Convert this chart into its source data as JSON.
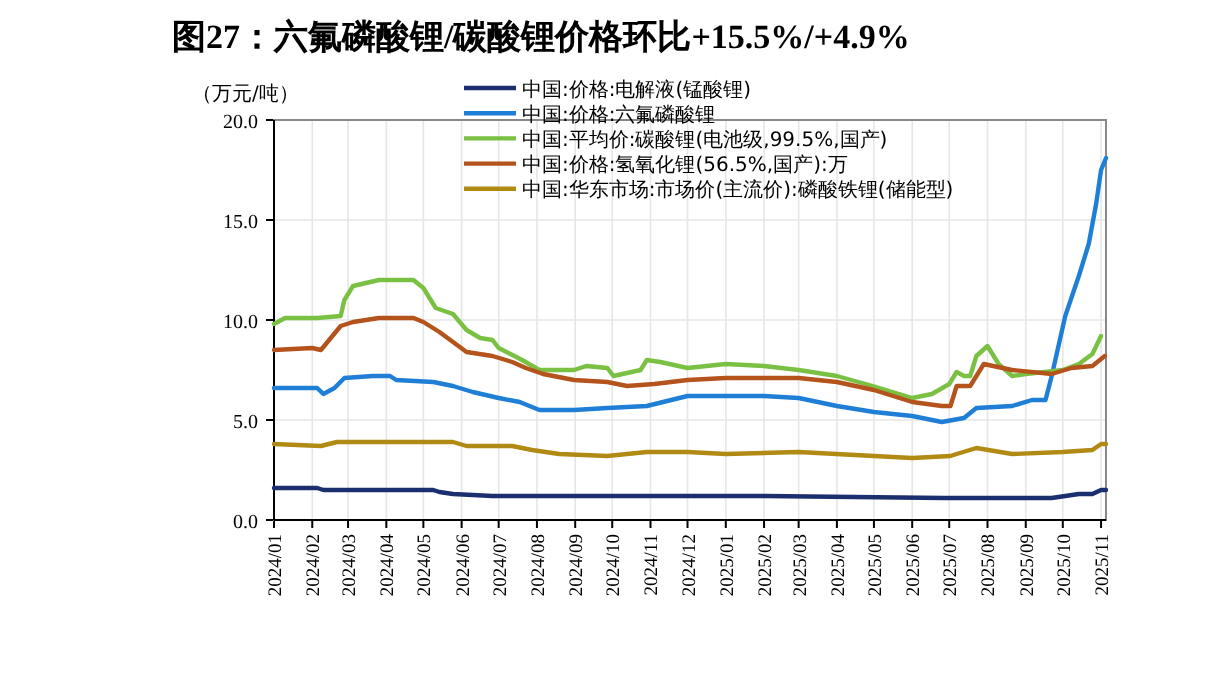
{
  "chart_data": {
    "type": "line",
    "title": "图27：六氟磷酸锂/碳酸锂价格环比+15.5%/+4.9%",
    "ylabel": "（万元/吨）",
    "xlim": [
      "2024-01-01",
      "2025-11-05"
    ],
    "xticks": [
      {
        "value": "2024-01-01",
        "label": "2024/01"
      },
      {
        "value": "2024-02-01",
        "label": "2024/02"
      },
      {
        "value": "2024-03-01",
        "label": "2024/03"
      },
      {
        "value": "2024-04-01",
        "label": "2024/04"
      },
      {
        "value": "2024-05-01",
        "label": "2024/05"
      },
      {
        "value": "2024-06-01",
        "label": "2024/06"
      },
      {
        "value": "2024-07-01",
        "label": "2024/07"
      },
      {
        "value": "2024-08-01",
        "label": "2024/08"
      },
      {
        "value": "2024-09-01",
        "label": "2024/09"
      },
      {
        "value": "2024-10-01",
        "label": "2024/10"
      },
      {
        "value": "2024-11-01",
        "label": "2024/11"
      },
      {
        "value": "2024-12-01",
        "label": "2024/12"
      },
      {
        "value": "2025-01-01",
        "label": "2025/01"
      },
      {
        "value": "2025-02-01",
        "label": "2025/02"
      },
      {
        "value": "2025-03-01",
        "label": "2025/03"
      },
      {
        "value": "2025-04-01",
        "label": "2025/04"
      },
      {
        "value": "2025-05-01",
        "label": "2025/05"
      },
      {
        "value": "2025-06-01",
        "label": "2025/06"
      },
      {
        "value": "2025-07-01",
        "label": "2025/07"
      },
      {
        "value": "2025-08-01",
        "label": "2025/08"
      },
      {
        "value": "2025-09-01",
        "label": "2025/09"
      },
      {
        "value": "2025-10-01",
        "label": "2025/10"
      },
      {
        "value": "2025-11-01",
        "label": "2025/11"
      }
    ],
    "ylim": [
      0,
      20
    ],
    "yticks": [
      {
        "value": 0,
        "label": "0.0"
      },
      {
        "value": 5,
        "label": "5.0"
      },
      {
        "value": 10,
        "label": "10.0"
      },
      {
        "value": 15,
        "label": "15.0"
      },
      {
        "value": 20,
        "label": "20.0"
      }
    ],
    "grid": true,
    "legend": "top",
    "line_style": "solid",
    "marker": "none",
    "series": [
      {
        "name": "中国:价格:电解液(锰酸锂)",
        "color": "#1b2f6e",
        "x": [
          "2024-01-01",
          "2024-02-05",
          "2024-02-10",
          "2024-05-09",
          "2024-05-14",
          "2024-05-25",
          "2024-06-26",
          "2024-12-01",
          "2025-02-01",
          "2025-06-27",
          "2025-09-22",
          "2025-10-14",
          "2025-10-25",
          "2025-11-01",
          "2025-11-05"
        ],
        "values": [
          1.6,
          1.6,
          1.5,
          1.5,
          1.4,
          1.3,
          1.2,
          1.2,
          1.2,
          1.1,
          1.1,
          1.3,
          1.3,
          1.5,
          1.5
        ]
      },
      {
        "name": "中国:价格:六氟磷酸锂",
        "color": "#1f7fd6",
        "x": [
          "2024-01-01",
          "2024-02-05",
          "2024-02-10",
          "2024-02-19",
          "2024-02-27",
          "2024-03-21",
          "2024-04-04",
          "2024-04-09",
          "2024-05-09",
          "2024-05-25",
          "2024-06-10",
          "2024-07-01",
          "2024-07-18",
          "2024-08-03",
          "2024-08-31",
          "2024-09-27",
          "2024-10-29",
          "2024-12-01",
          "2025-01-01",
          "2025-02-01",
          "2025-03-01",
          "2025-04-01",
          "2025-05-01",
          "2025-06-01",
          "2025-06-25",
          "2025-07-13",
          "2025-07-23",
          "2025-08-21",
          "2025-09-06",
          "2025-09-17",
          "2025-09-22",
          "2025-10-03",
          "2025-10-14",
          "2025-10-22",
          "2025-10-28",
          "2025-11-01",
          "2025-11-05"
        ],
        "values": [
          6.6,
          6.6,
          6.3,
          6.6,
          7.1,
          7.2,
          7.2,
          7.0,
          6.9,
          6.7,
          6.4,
          6.1,
          5.9,
          5.5,
          5.5,
          5.6,
          5.7,
          6.2,
          6.2,
          6.2,
          6.1,
          5.7,
          5.4,
          5.2,
          4.9,
          5.1,
          5.6,
          5.7,
          6.0,
          6.0,
          7.2,
          10.2,
          12.2,
          13.8,
          15.8,
          17.5,
          18.1
        ]
      },
      {
        "name": "中国:平均价:碳酸锂(电池级,99.5%,国产)",
        "color": "#7ac143",
        "x": [
          "2024-01-01",
          "2024-01-10",
          "2024-02-05",
          "2024-02-24",
          "2024-02-27",
          "2024-03-05",
          "2024-03-26",
          "2024-04-23",
          "2024-05-01",
          "2024-05-11",
          "2024-05-25",
          "2024-06-05",
          "2024-06-16",
          "2024-06-26",
          "2024-07-01",
          "2024-07-20",
          "2024-08-03",
          "2024-08-31",
          "2024-09-10",
          "2024-09-27",
          "2024-10-02",
          "2024-10-24",
          "2024-10-29",
          "2024-11-09",
          "2024-12-01",
          "2025-01-01",
          "2025-02-01",
          "2025-03-01",
          "2025-04-01",
          "2025-04-30",
          "2025-06-01",
          "2025-06-17",
          "2025-07-01",
          "2025-07-07",
          "2025-07-13",
          "2025-07-18",
          "2025-07-23",
          "2025-08-01",
          "2025-08-10",
          "2025-08-21",
          "2025-09-01",
          "2025-10-01",
          "2025-10-14",
          "2025-10-25",
          "2025-11-01"
        ],
        "values": [
          9.8,
          10.1,
          10.1,
          10.2,
          11.0,
          11.7,
          12.0,
          12.0,
          11.6,
          10.6,
          10.3,
          9.5,
          9.1,
          9.0,
          8.6,
          8.0,
          7.5,
          7.5,
          7.7,
          7.6,
          7.2,
          7.5,
          8.0,
          7.9,
          7.6,
          7.8,
          7.7,
          7.5,
          7.2,
          6.7,
          6.1,
          6.3,
          6.8,
          7.4,
          7.2,
          7.2,
          8.2,
          8.7,
          7.8,
          7.2,
          7.3,
          7.5,
          7.8,
          8.3,
          9.2
        ]
      },
      {
        "name": "中国:价格:氢氧化锂(56.5%,国产):万",
        "color": "#b5531c",
        "x": [
          "2024-01-01",
          "2024-02-01",
          "2024-02-08",
          "2024-02-24",
          "2024-03-05",
          "2024-03-26",
          "2024-04-23",
          "2024-05-01",
          "2024-05-14",
          "2024-05-25",
          "2024-06-05",
          "2024-06-26",
          "2024-07-12",
          "2024-07-23",
          "2024-08-06",
          "2024-08-31",
          "2024-09-27",
          "2024-10-13",
          "2024-11-04",
          "2024-12-01",
          "2025-01-01",
          "2025-03-01",
          "2025-04-01",
          "2025-05-01",
          "2025-06-01",
          "2025-06-25",
          "2025-07-02",
          "2025-07-07",
          "2025-07-18",
          "2025-07-29",
          "2025-08-21",
          "2025-09-22",
          "2025-10-08",
          "2025-10-25",
          "2025-11-04"
        ],
        "values": [
          8.5,
          8.6,
          8.5,
          9.7,
          9.9,
          10.1,
          10.1,
          9.9,
          9.4,
          8.9,
          8.4,
          8.2,
          7.9,
          7.6,
          7.3,
          7.0,
          6.9,
          6.7,
          6.8,
          7.0,
          7.1,
          7.1,
          6.9,
          6.5,
          5.9,
          5.7,
          5.7,
          6.7,
          6.7,
          7.8,
          7.5,
          7.3,
          7.6,
          7.7,
          8.2
        ]
      },
      {
        "name": "中国:华东市场:市场价(主流价):磷酸铁锂(储能型)",
        "color": "#b08a12",
        "x": [
          "2024-01-01",
          "2024-02-08",
          "2024-02-21",
          "2024-05-25",
          "2024-06-05",
          "2024-07-12",
          "2024-07-28",
          "2024-08-19",
          "2024-09-27",
          "2024-10-29",
          "2024-12-01",
          "2025-01-01",
          "2025-03-01",
          "2025-05-01",
          "2025-06-01",
          "2025-07-02",
          "2025-07-07",
          "2025-07-23",
          "2025-08-21",
          "2025-10-01",
          "2025-10-25",
          "2025-11-01",
          "2025-11-05"
        ],
        "values": [
          3.8,
          3.7,
          3.9,
          3.9,
          3.7,
          3.7,
          3.5,
          3.3,
          3.2,
          3.4,
          3.4,
          3.3,
          3.4,
          3.2,
          3.1,
          3.2,
          3.3,
          3.6,
          3.3,
          3.4,
          3.5,
          3.8,
          3.8
        ]
      }
    ]
  }
}
